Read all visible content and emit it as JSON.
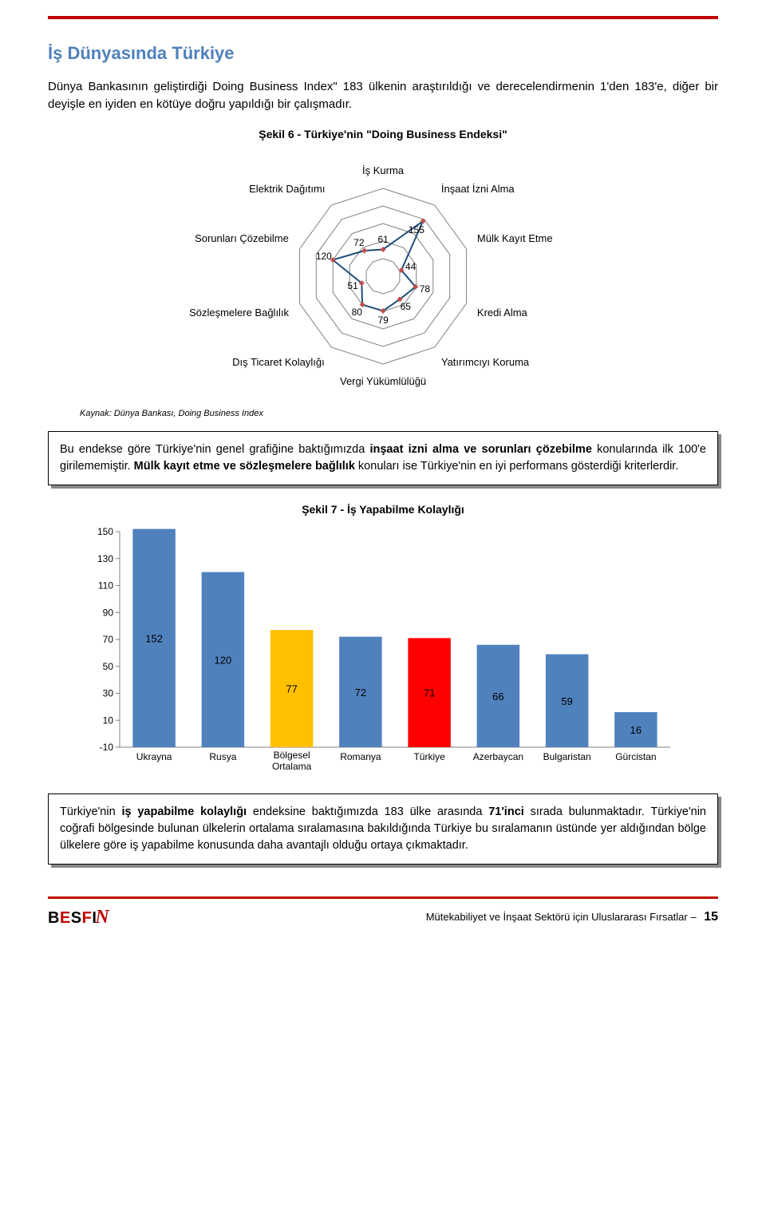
{
  "header": {
    "section_title": "İş Dünyasında Türkiye"
  },
  "intro_paragraph": "Dünya Bankasının geliştirdiği Doing Business Index\" 183 ülkenin araştırıldığı ve derecelendirmenin 1'den 183'e, diğer bir deyişle en iyiden en kötüye doğru yapıldığı bir çalışmadır.",
  "radar": {
    "title": "Şekil 6 -  Türkiye'nin \"Doing Business Endeksi\"",
    "source": "Kaynak: Dünya Bankası, Doing Business Index",
    "grid_levels": 5,
    "max_value": 200,
    "ring_color": "#808080",
    "line_color": "#1f4e79",
    "marker_color": "#c0504d",
    "marker_size": 5,
    "font_size_labels": 13,
    "font_size_values": 12,
    "axes": [
      {
        "label": "İş Kurma",
        "value": 61
      },
      {
        "label": "İnşaat İzni Alma",
        "value": 155
      },
      {
        "label": "Mülk Kayıt Etme",
        "value": 44
      },
      {
        "label": "Kredi Alma",
        "value": 78
      },
      {
        "label": "Yatırımcıyı Koruma",
        "value": 65
      },
      {
        "label": "Vergi Yükümlülüğü",
        "value": 79
      },
      {
        "label": "Dış Ticaret Kolaylığı",
        "value": 80
      },
      {
        "label": "Sözleşmelere Bağlılık",
        "value": 51
      },
      {
        "label": "Sorunları Çözebilme",
        "value": 120
      },
      {
        "label": "Elektrik Dağıtımı",
        "value": 72
      }
    ]
  },
  "callout1": {
    "pre": "Bu endekse göre Türkiye'nin genel grafiğine baktığımızda ",
    "bold1": "inşaat izni alma ve sorunları çözebilme",
    "mid": " konularında ilk 100'e girilememiştir. ",
    "bold2": "Mülk kayıt etme ve sözleşmelere bağlılık",
    "post": " konuları ise Türkiye'nin en iyi performans gösterdiği kriterlerdir."
  },
  "bar": {
    "title": "Şekil 7 - İş Yapabilme Kolaylığı",
    "ymin": -10,
    "ymax": 150,
    "ytick_step": 20,
    "yticks": [
      -10,
      10,
      30,
      50,
      70,
      90,
      110,
      130,
      150
    ],
    "axis_color": "#808080",
    "label_fontsize": 12,
    "value_fontsize": 13,
    "bar_width_ratio": 0.62,
    "default_color": "#4f81bd",
    "categories": [
      {
        "label": "Ukrayna",
        "value": 152,
        "color": "#4f81bd"
      },
      {
        "label": "Rusya",
        "value": 120,
        "color": "#4f81bd"
      },
      {
        "label": "Bölgesel Ortalama",
        "value": 77,
        "color": "#ffc000"
      },
      {
        "label": "Romanya",
        "value": 72,
        "color": "#4f81bd"
      },
      {
        "label": "Türkiye",
        "value": 71,
        "color": "#ff0000"
      },
      {
        "label": "Azerbaycan",
        "value": 66,
        "color": "#4f81bd"
      },
      {
        "label": "Bulgaristan",
        "value": 59,
        "color": "#4f81bd"
      },
      {
        "label": "Gürcistan",
        "value": 16,
        "color": "#4f81bd"
      }
    ]
  },
  "callout2": {
    "p1a": "Türkiye'nin ",
    "p1b": "iş yapabilme kolaylığı",
    "p1c": " endeksine baktığımızda 183 ülke arasında ",
    "p1d": "71'inci",
    "p1e": " sırada bulunmaktadır. Türkiye'nin coğrafi bölgesinde bulunan ülkelerin ortalama sıralamasına bakıldığında Türkiye bu sıralamanın üstünde yer aldığından bölge ülkelere göre iş yapabilme konusunda daha avantajlı olduğu ortaya çıkmaktadır."
  },
  "footer": {
    "logo_text": "BESFIN",
    "doc_title": "Mütekabiliyet ve İnşaat Sektörü için Uluslararası Fırsatlar",
    "page_number": "15"
  }
}
